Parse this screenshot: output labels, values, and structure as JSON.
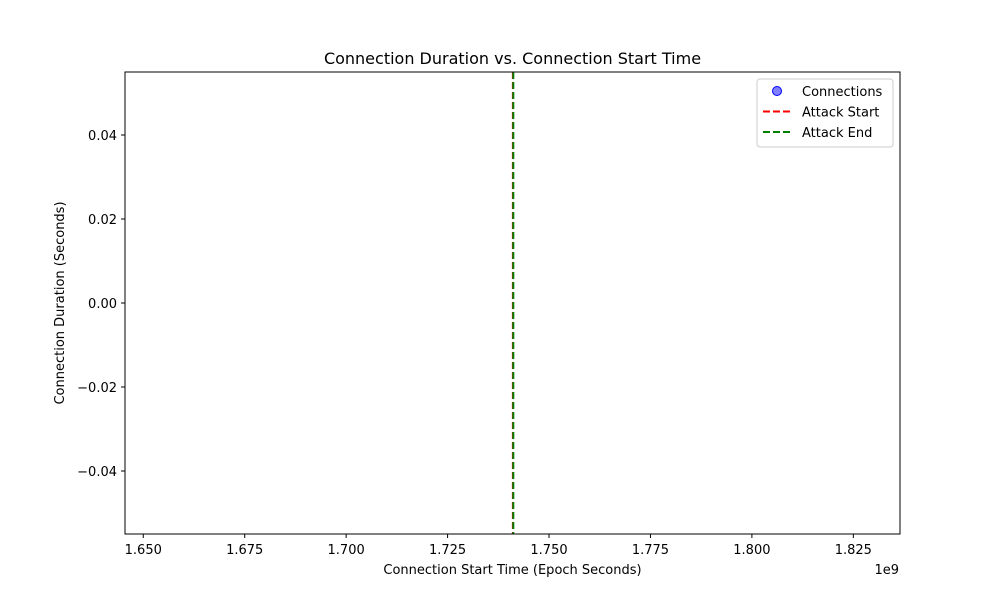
{
  "chart_data": {
    "type": "scatter",
    "title": "Connection Duration vs. Connection Start Time",
    "xlabel": "Connection Start Time (Epoch Seconds)",
    "ylabel": "Connection Duration (Seconds)",
    "x_offset_label": "1e9",
    "xlim": [
      1.6455,
      1.8365
    ],
    "ylim": [
      -0.055,
      0.055
    ],
    "x_ticks": [
      1.65,
      1.675,
      1.7,
      1.725,
      1.75,
      1.775,
      1.8,
      1.825
    ],
    "x_tick_labels": [
      "1.650",
      "1.675",
      "1.700",
      "1.725",
      "1.750",
      "1.775",
      "1.800",
      "1.825"
    ],
    "y_ticks": [
      0.04,
      0.02,
      0.0,
      -0.02,
      -0.04
    ],
    "y_tick_labels": [
      "0.04",
      "0.02",
      "0.00",
      "−0.02",
      "−0.04"
    ],
    "grid": false,
    "legend_position": "top-right",
    "series": [
      {
        "name": "Connections",
        "kind": "scatter",
        "color": "#0000ff",
        "x": [],
        "y": []
      },
      {
        "name": "Attack Start",
        "kind": "vline",
        "color": "#ff0000",
        "x": 1.7411,
        "linestyle": "dashed"
      },
      {
        "name": "Attack End",
        "kind": "vline",
        "color": "#008000",
        "x": 1.7412,
        "linestyle": "dashed"
      }
    ]
  }
}
